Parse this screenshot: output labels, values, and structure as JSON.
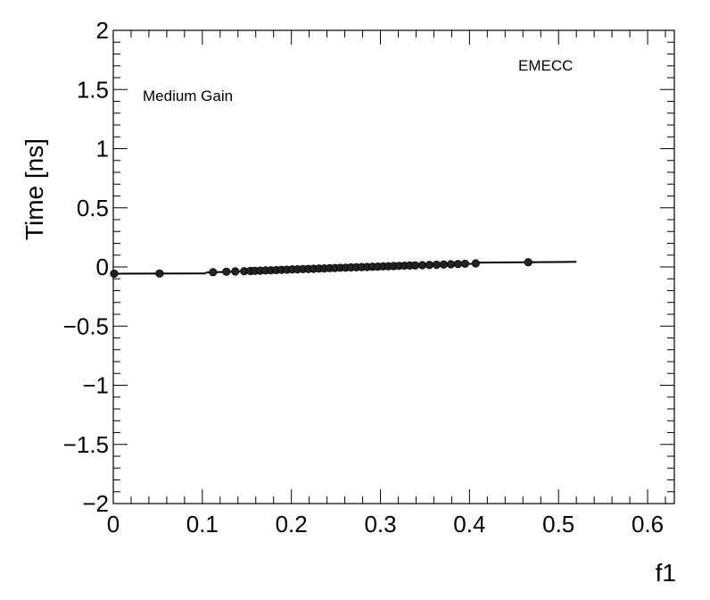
{
  "chart_data": {
    "type": "scatter",
    "xlabel": "f1",
    "ylabel": "Time [ns]",
    "xlim": [
      0,
      0.63
    ],
    "ylim": [
      -2,
      2
    ],
    "grid": false,
    "x_ticks": [
      0,
      0.1,
      0.2,
      0.3,
      0.4,
      0.5,
      0.6
    ],
    "y_ticks": [
      -2,
      -1.5,
      -1,
      -0.5,
      0,
      0.5,
      1,
      1.5,
      2
    ],
    "x_tick_labels": [
      "0",
      "0.1",
      "0.2",
      "0.3",
      "0.4",
      "0.5",
      "0.6"
    ],
    "y_tick_labels": [
      "−2",
      "−1.5",
      "−1",
      "−0.5",
      "0",
      "0.5",
      "1",
      "1.5",
      "2"
    ],
    "annotations": [
      {
        "id": "gain",
        "text": "Medium Gain"
      },
      {
        "id": "region",
        "text": "EMECC"
      }
    ],
    "series": [
      {
        "points": [
          [
            0.001,
            -0.057
          ],
          [
            0.052,
            -0.055
          ],
          [
            0.112,
            -0.044
          ],
          [
            0.127,
            -0.04
          ],
          [
            0.137,
            -0.038
          ],
          [
            0.147,
            -0.036
          ],
          [
            0.154,
            -0.034
          ],
          [
            0.159,
            -0.033
          ],
          [
            0.165,
            -0.031
          ],
          [
            0.171,
            -0.029
          ],
          [
            0.177,
            -0.028
          ],
          [
            0.183,
            -0.026
          ],
          [
            0.189,
            -0.024
          ],
          [
            0.195,
            -0.023
          ],
          [
            0.201,
            -0.021
          ],
          [
            0.207,
            -0.02
          ],
          [
            0.213,
            -0.018
          ],
          [
            0.219,
            -0.017
          ],
          [
            0.225,
            -0.015
          ],
          [
            0.231,
            -0.013
          ],
          [
            0.237,
            -0.012
          ],
          [
            0.243,
            -0.01
          ],
          [
            0.249,
            -0.009
          ],
          [
            0.255,
            -0.007
          ],
          [
            0.261,
            -0.006
          ],
          [
            0.267,
            -0.004
          ],
          [
            0.273,
            -0.003
          ],
          [
            0.279,
            -0.001
          ],
          [
            0.285,
            0.0
          ],
          [
            0.291,
            0.002
          ],
          [
            0.297,
            0.003
          ],
          [
            0.303,
            0.005
          ],
          [
            0.309,
            0.006
          ],
          [
            0.315,
            0.008
          ],
          [
            0.321,
            0.009
          ],
          [
            0.327,
            0.011
          ],
          [
            0.333,
            0.012
          ],
          [
            0.339,
            0.013
          ],
          [
            0.347,
            0.015
          ],
          [
            0.355,
            0.017
          ],
          [
            0.363,
            0.019
          ],
          [
            0.371,
            0.021
          ],
          [
            0.379,
            0.023
          ],
          [
            0.387,
            0.025
          ],
          [
            0.395,
            0.027
          ],
          [
            0.407,
            0.03
          ],
          [
            0.466,
            0.04
          ]
        ]
      }
    ],
    "fit_segments": [
      {
        "x": [
          0.0,
          0.104
        ],
        "y": [
          -0.057,
          -0.055
        ]
      },
      {
        "x": [
          0.104,
          0.408
        ],
        "y": [
          -0.047,
          0.028
        ]
      },
      {
        "x": [
          0.408,
          0.52
        ],
        "y": [
          0.037,
          0.043
        ]
      }
    ]
  }
}
